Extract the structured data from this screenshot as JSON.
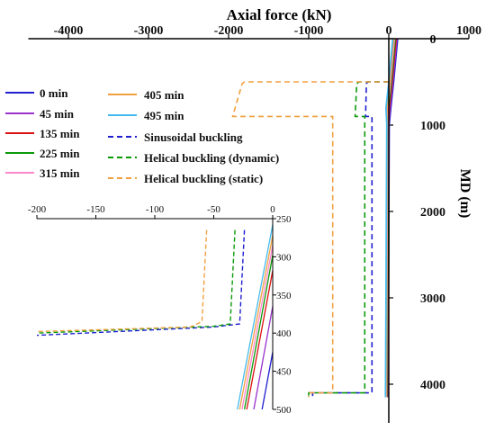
{
  "chart_data": [
    {
      "type": "line",
      "xlabel": "Axial force  (kN)",
      "ylabel": "MD (m)",
      "xlim": [
        -4500,
        1000
      ],
      "ylim": [
        0,
        4500
      ],
      "x_ticks": [
        -4000,
        -3000,
        -2000,
        -1000,
        0,
        1000
      ],
      "y_ticks": [
        0,
        1000,
        2000,
        3000,
        4000
      ],
      "x_tick_labels": [
        "-4000",
        "-3000",
        "-2000",
        "-1000",
        "0",
        "1000"
      ],
      "y_tick_labels": [
        "0",
        "1000",
        "2000",
        "3000",
        "4000"
      ],
      "axis_position": "x-axis on top, y-axis at right",
      "legend_position": "left",
      "series": [
        {
          "name": "0 min",
          "color": "#1f1fd0",
          "dash": "solid",
          "points": [
            [
              110,
              0
            ],
            [
              60,
              500
            ],
            [
              25,
              800
            ],
            [
              5,
              1000
            ],
            [
              0,
              2000
            ],
            [
              -5,
              3000
            ],
            [
              -10,
              4000
            ],
            [
              -12,
              4150
            ]
          ]
        },
        {
          "name": "45 min",
          "color": "#9933cc",
          "dash": "solid",
          "points": [
            [
              100,
              0
            ],
            [
              50,
              500
            ],
            [
              15,
              800
            ],
            [
              0,
              1000
            ],
            [
              -5,
              2000
            ],
            [
              -10,
              3000
            ],
            [
              -15,
              4000
            ],
            [
              -17,
              4150
            ]
          ]
        },
        {
          "name": "135 min",
          "color": "#dd1111",
          "dash": "solid",
          "points": [
            [
              90,
              0
            ],
            [
              40,
              500
            ],
            [
              5,
              800
            ],
            [
              -5,
              1000
            ],
            [
              -10,
              2000
            ],
            [
              -15,
              3000
            ],
            [
              -20,
              4000
            ],
            [
              -22,
              4150
            ]
          ]
        },
        {
          "name": "225 min",
          "color": "#0a9a0a",
          "dash": "solid",
          "points": [
            [
              80,
              0
            ],
            [
              30,
              500
            ],
            [
              -5,
              800
            ],
            [
              -10,
              1000
            ],
            [
              -15,
              2000
            ],
            [
              -20,
              3000
            ],
            [
              -25,
              4000
            ],
            [
              -27,
              4150
            ]
          ]
        },
        {
          "name": "315 min",
          "color": "#ff88cc",
          "dash": "solid",
          "points": [
            [
              70,
              0
            ],
            [
              20,
              500
            ],
            [
              -15,
              800
            ],
            [
              -15,
              1000
            ],
            [
              -20,
              2000
            ],
            [
              -25,
              3000
            ],
            [
              -30,
              4000
            ],
            [
              -32,
              4150
            ]
          ]
        },
        {
          "name": "405 min",
          "color": "#f0a040",
          "dash": "solid",
          "points": [
            [
              60,
              0
            ],
            [
              10,
              500
            ],
            [
              -25,
              800
            ],
            [
              -20,
              1000
            ],
            [
              -25,
              2000
            ],
            [
              -30,
              3000
            ],
            [
              -35,
              4000
            ],
            [
              -37,
              4150
            ]
          ]
        },
        {
          "name": "495 min",
          "color": "#44bbee",
          "dash": "solid",
          "points": [
            [
              50,
              0
            ],
            [
              0,
              500
            ],
            [
              -35,
              800
            ],
            [
              -25,
              1000
            ],
            [
              -30,
              2000
            ],
            [
              -35,
              3000
            ],
            [
              -40,
              4000
            ],
            [
              -42,
              4150
            ]
          ]
        },
        {
          "name": "Sinusoidal buckling",
          "color": "#1f1fd0",
          "dash": "dashed",
          "points": [
            [
              0,
              500
            ],
            [
              -260,
              500
            ],
            [
              -280,
              520
            ],
            [
              -290,
              900
            ],
            [
              -210,
              900
            ],
            [
              -210,
              4100
            ],
            [
              -950,
              4100
            ],
            [
              -950,
              4150
            ]
          ]
        },
        {
          "name": "Helical buckling (dynamic)",
          "color": "#0a9a0a",
          "dash": "dashed",
          "points": [
            [
              0,
              500
            ],
            [
              -370,
              500
            ],
            [
              -400,
              520
            ],
            [
              -420,
              900
            ],
            [
              -300,
              900
            ],
            [
              -300,
              4100
            ],
            [
              -1000,
              4100
            ],
            [
              -1000,
              4150
            ]
          ]
        },
        {
          "name": "Helical buckling (static)",
          "color": "#f0a040",
          "dash": "dashed",
          "points": [
            [
              0,
              500
            ],
            [
              -1800,
              500
            ],
            [
              -1830,
              520
            ],
            [
              -1950,
              900
            ],
            [
              -700,
              900
            ],
            [
              -700,
              4100
            ],
            [
              -1000,
              4100
            ],
            [
              -1000,
              4150
            ]
          ]
        }
      ]
    },
    {
      "type": "line",
      "xlabel": "",
      "ylabel": "",
      "xlim": [
        -200,
        0
      ],
      "ylim": [
        250,
        500
      ],
      "x_ticks": [
        -200,
        -150,
        -100,
        -50,
        0
      ],
      "y_ticks": [
        250,
        300,
        350,
        400,
        450,
        500
      ],
      "x_tick_labels": [
        "-200",
        "-150",
        "-100",
        "-50",
        "0"
      ],
      "y_tick_labels": [
        "250",
        "300",
        "350",
        "400",
        "450",
        "500"
      ],
      "series": [
        {
          "name": "0 min",
          "color": "#1f1fd0",
          "dash": "solid",
          "points": [
            [
              0,
              425
            ],
            [
              -9,
              500
            ]
          ]
        },
        {
          "name": "45 min",
          "color": "#9933cc",
          "dash": "solid",
          "points": [
            [
              0,
              365
            ],
            [
              -16,
              500
            ]
          ]
        },
        {
          "name": "135 min",
          "color": "#dd1111",
          "dash": "solid",
          "points": [
            [
              0,
              318
            ],
            [
              -22,
              500
            ]
          ]
        },
        {
          "name": "225 min",
          "color": "#0a9a0a",
          "dash": "solid",
          "points": [
            [
              0,
              298
            ],
            [
              -24,
              500
            ]
          ]
        },
        {
          "name": "315 min",
          "color": "#ff88cc",
          "dash": "solid",
          "points": [
            [
              0,
              285
            ],
            [
              -26,
              500
            ]
          ]
        },
        {
          "name": "405 min",
          "color": "#f0a040",
          "dash": "solid",
          "points": [
            [
              0,
              272
            ],
            [
              -28,
              500
            ]
          ]
        },
        {
          "name": "495 min",
          "color": "#44bbee",
          "dash": "solid",
          "points": [
            [
              0,
              258
            ],
            [
              -30,
              500
            ]
          ]
        },
        {
          "name": "Sinusoidal buckling",
          "color": "#1f1fd0",
          "dash": "dashed",
          "points": [
            [
              -24,
              265
            ],
            [
              -28,
              388
            ],
            [
              -50,
              392
            ],
            [
              -200,
              403
            ]
          ]
        },
        {
          "name": "Helical buckling (dynamic)",
          "color": "#0a9a0a",
          "dash": "dashed",
          "points": [
            [
              -32,
              265
            ],
            [
              -36,
              388
            ],
            [
              -50,
              391
            ],
            [
              -200,
              400
            ]
          ]
        },
        {
          "name": "Helical buckling (static)",
          "color": "#f0a040",
          "dash": "dashed",
          "points": [
            [
              -56,
              265
            ],
            [
              -60,
              385
            ],
            [
              -70,
              392
            ],
            [
              -200,
              398
            ]
          ]
        }
      ]
    }
  ]
}
